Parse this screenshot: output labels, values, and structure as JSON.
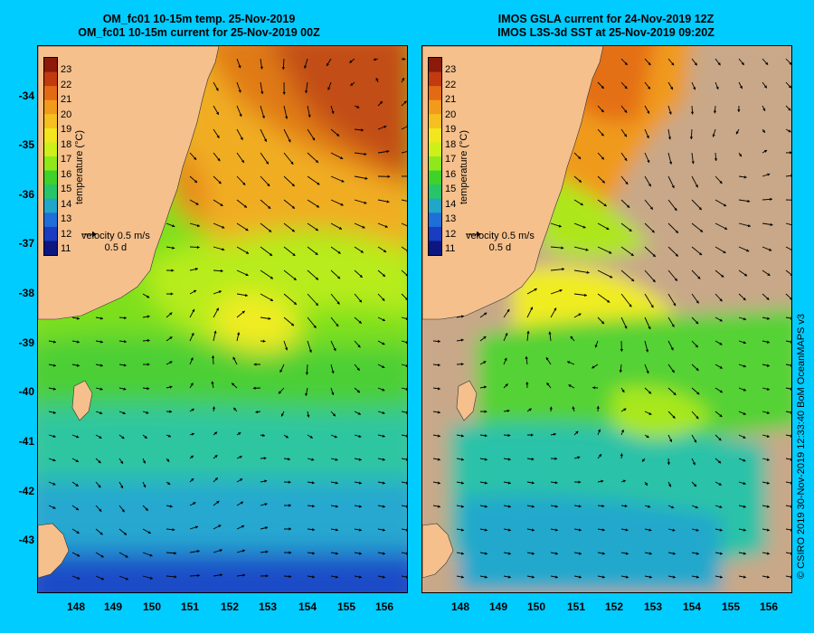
{
  "left_panel": {
    "title_line1": "OM_fc01 10-15m temp. 25-Nov-2019",
    "title_line2": "OM_fc01 10-15m current for 25-Nov-2019 00Z"
  },
  "right_panel": {
    "title_line1": "IMOS GSLA current for 24-Nov-2019 12Z",
    "title_line2": "IMOS L3S-3d SST at 25-Nov-2019 09:20Z"
  },
  "y_ticks": [
    "-34",
    "-35",
    "-36",
    "-37",
    "-38",
    "-39",
    "-40",
    "-41",
    "-42",
    "-43"
  ],
  "x_ticks": [
    "148",
    "149",
    "150",
    "151",
    "152",
    "153",
    "154",
    "155",
    "156"
  ],
  "colorbar": {
    "labels": [
      "23",
      "22",
      "21",
      "20",
      "19",
      "18",
      "17",
      "16",
      "15",
      "14",
      "13",
      "12",
      "11"
    ],
    "title": "temperature (°C)",
    "colors": [
      "#8b1a0a",
      "#c23a10",
      "#e36a14",
      "#f29a1c",
      "#f5c01f",
      "#f3e61e",
      "#cdf01a",
      "#8ee81a",
      "#3fd22a",
      "#27c46a",
      "#20a6c8",
      "#1f6fd8",
      "#1a3cc0",
      "#0c1680"
    ]
  },
  "velocity_key": {
    "label": "velocity",
    "speed": "0.5 m/s",
    "duration": "0.5 d"
  },
  "copyright": "© CSIRO 2019   30-Nov-2019 12:33:40 BoM OceanMAPS v3",
  "colors": {
    "background": "#00ccff",
    "land": "#f5c08c",
    "missing_data": "#c8a888"
  }
}
